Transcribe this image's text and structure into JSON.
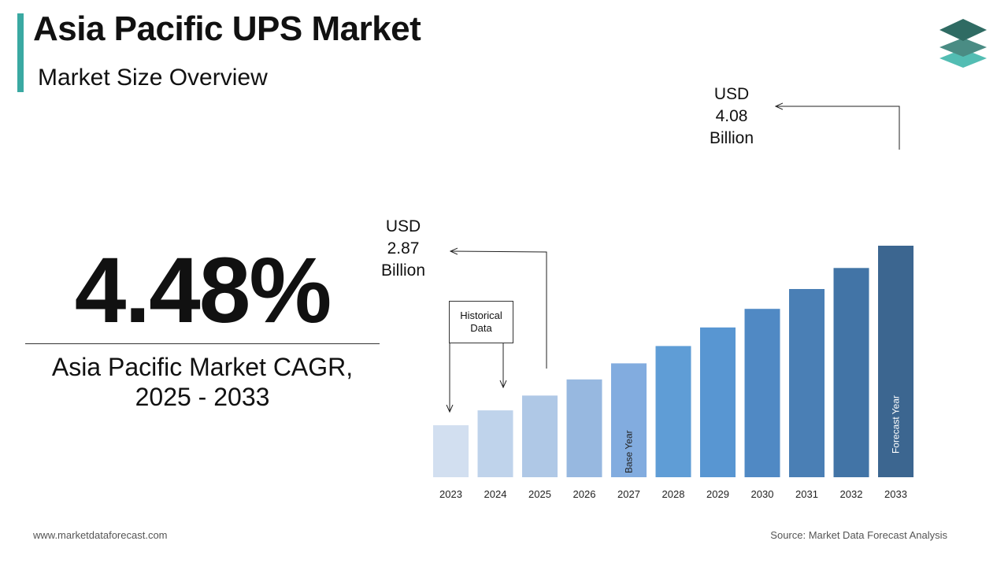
{
  "header": {
    "title": "Asia Pacific UPS Market",
    "subtitle": "Market Size Overview",
    "accent_color": "#3aa9a2"
  },
  "logo": {
    "icon": "stacked-layers-icon",
    "colors": [
      "#2f6b63",
      "#4a8c84",
      "#53bdb3"
    ]
  },
  "cagr": {
    "value": "4.48%",
    "label_line1": "Asia Pacific Market CAGR,",
    "label_line2": "2025 - 2033"
  },
  "callouts": {
    "start": {
      "line1": "USD",
      "line2": "2.87",
      "line3": "Billion"
    },
    "end": {
      "line1": "USD",
      "line2": "4.08",
      "line3": "Billion"
    },
    "historical": {
      "line1": "Historical",
      "line2": "Data"
    }
  },
  "chart_data": {
    "type": "bar",
    "categories": [
      "2023",
      "2024",
      "2025",
      "2026",
      "2027",
      "2028",
      "2029",
      "2030",
      "2031",
      "2032",
      "2033"
    ],
    "values": [
      2.63,
      2.75,
      2.87,
      3.0,
      3.13,
      3.27,
      3.42,
      3.57,
      3.73,
      3.9,
      4.08
    ],
    "colors": [
      "#d2dff0",
      "#bfd3eb",
      "#afc8e6",
      "#97b8e0",
      "#82acdf",
      "#5f9dd6",
      "#5896d2",
      "#5089c4",
      "#4a7fb5",
      "#4274a6",
      "#3c6690"
    ],
    "annotations": [
      {
        "category": "2027",
        "text": "Base Year"
      },
      {
        "category": "2033",
        "text": "Forecast Year"
      }
    ],
    "grid": false,
    "legend": "none"
  },
  "footer": {
    "website": "www.marketdataforecast.com",
    "source": "Source: Market Data Forecast Analysis"
  }
}
